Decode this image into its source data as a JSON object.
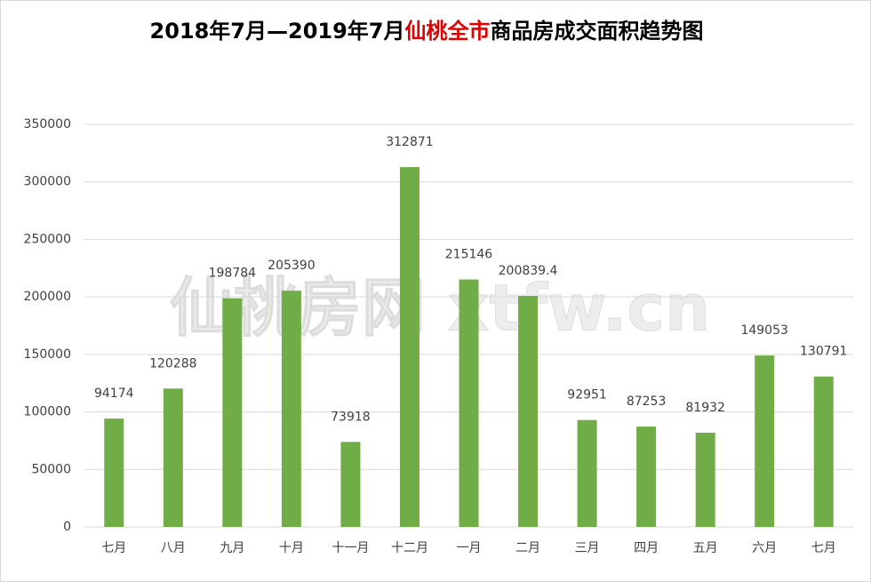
{
  "chart_data": {
    "type": "bar",
    "title_parts": [
      "2018年7月—2019年7月",
      "仙桃全市",
      "商品房成交面积趋势图"
    ],
    "title_colors": [
      "#000000",
      "#e00000",
      "#000000"
    ],
    "watermark": "仙桃房网 xtfw.cn",
    "categories": [
      "七月",
      "八月",
      "九月",
      "十月",
      "十一月",
      "十二月",
      "一月",
      "二月",
      "三月",
      "四月",
      "五月",
      "六月",
      "七月"
    ],
    "values": [
      94174,
      120288,
      198784,
      205390,
      73918,
      312871,
      215146,
      200839.4,
      92951,
      87253,
      81932,
      149053,
      130791
    ],
    "color": "#70ad47",
    "ylim": [
      0,
      350000
    ],
    "yticks": [
      0,
      50000,
      100000,
      150000,
      200000,
      250000,
      300000,
      350000
    ],
    "grid": true
  }
}
